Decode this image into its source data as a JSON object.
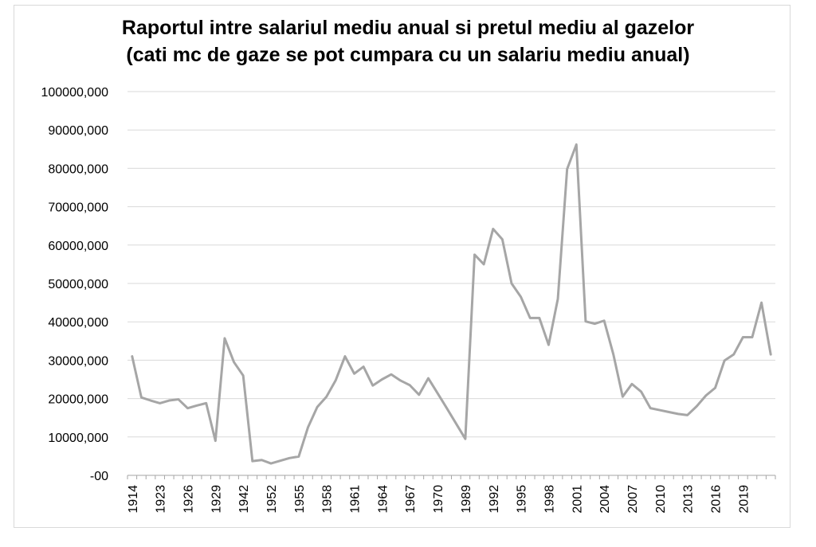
{
  "chart_data": {
    "type": "line",
    "title_line1": "Raportul intre salariul mediu anual si pretul mediu al gazelor",
    "title_line2": "(cati mc de gaze se pot cumpara cu un salariu mediu anual)",
    "xlabel": "",
    "ylabel": "",
    "ylim": [
      0,
      100000
    ],
    "y_ticks": [
      0,
      10000,
      20000,
      30000,
      40000,
      50000,
      60000,
      70000,
      80000,
      90000,
      100000
    ],
    "y_tick_labels": [
      "-00",
      "10000,000",
      "20000,000",
      "30000,000",
      "40000,000",
      "50000,000",
      "60000,000",
      "70000,000",
      "80000,000",
      "90000,000",
      "100000,000"
    ],
    "grid": true,
    "legend": "none",
    "x_tick_labels": [
      {
        "index": 0,
        "label": "1914"
      },
      {
        "index": 3,
        "label": "1923"
      },
      {
        "index": 6,
        "label": "1926"
      },
      {
        "index": 9,
        "label": "1929"
      },
      {
        "index": 12,
        "label": "1942"
      },
      {
        "index": 15,
        "label": "1952"
      },
      {
        "index": 18,
        "label": "1955"
      },
      {
        "index": 21,
        "label": "1958"
      },
      {
        "index": 24,
        "label": "1961"
      },
      {
        "index": 27,
        "label": "1964"
      },
      {
        "index": 30,
        "label": "1967"
      },
      {
        "index": 33,
        "label": "1970"
      },
      {
        "index": 36,
        "label": "1989"
      },
      {
        "index": 39,
        "label": "1992"
      },
      {
        "index": 42,
        "label": "1995"
      },
      {
        "index": 45,
        "label": "1998"
      },
      {
        "index": 48,
        "label": "2001"
      },
      {
        "index": 51,
        "label": "2004"
      },
      {
        "index": 54,
        "label": "2007"
      },
      {
        "index": 57,
        "label": "2010"
      },
      {
        "index": 60,
        "label": "2013"
      },
      {
        "index": 63,
        "label": "2016"
      },
      {
        "index": 66,
        "label": "2019"
      }
    ],
    "series": [
      {
        "values": [
          31000,
          20300,
          19500,
          18800,
          19500,
          19800,
          17500,
          18200,
          18800,
          9000,
          35700,
          29500,
          26000,
          3700,
          4000,
          3100,
          3800,
          4500,
          4900,
          12500,
          17800,
          20500,
          24800,
          31000,
          26500,
          28300,
          23400,
          25000,
          26300,
          24700,
          23500,
          21000,
          25300,
          21400,
          17500,
          13500,
          9500,
          57500,
          55000,
          64200,
          61500,
          50000,
          46500,
          41000,
          41000,
          34000,
          46000,
          79800,
          86200,
          40100,
          39500,
          40300,
          31500,
          20500,
          23800,
          21800,
          17500,
          17000,
          16500,
          16000,
          15700,
          18000,
          20800,
          22800,
          29900,
          31500,
          36000,
          36000,
          45000,
          31500
        ]
      }
    ],
    "colors": {
      "line": "#a6a6a6",
      "grid": "#d9d9d9",
      "axis": "#a6a6a6",
      "text": "#000000"
    }
  }
}
